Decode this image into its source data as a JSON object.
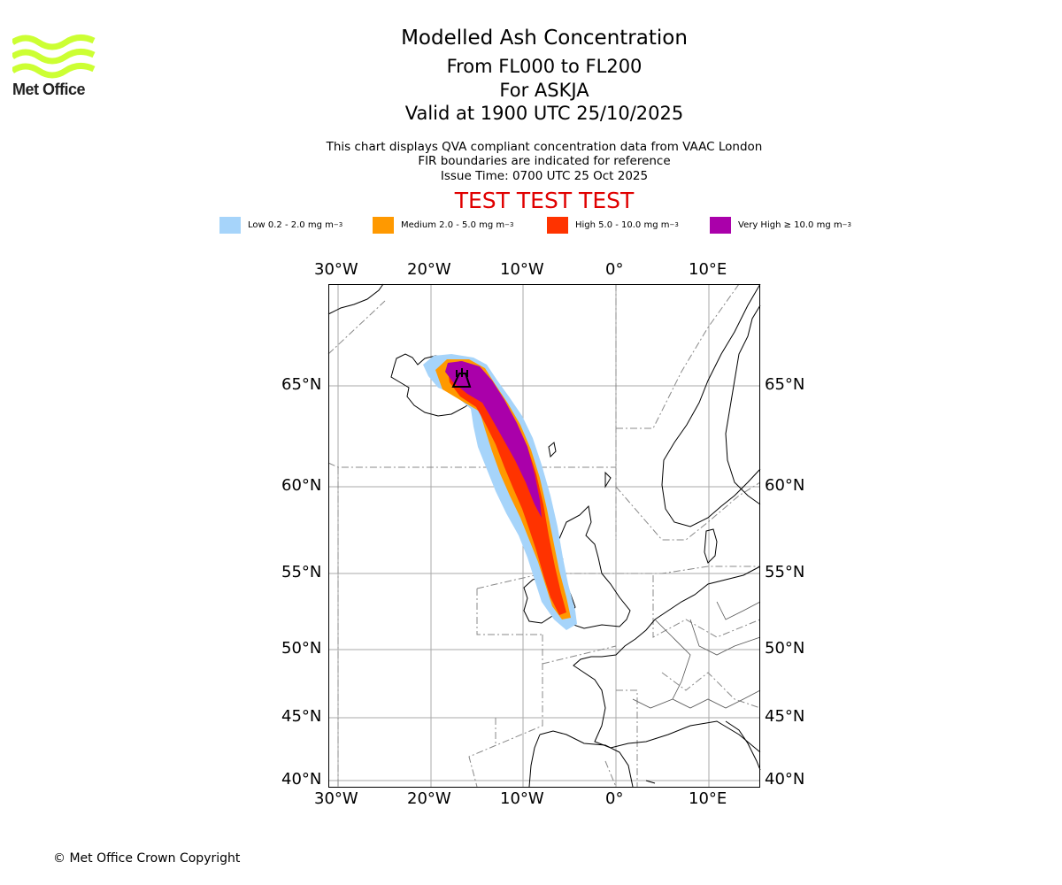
{
  "logo": {
    "brand": "Met Office",
    "color": "#ccff33"
  },
  "header": {
    "title": "Modelled Ash Concentration",
    "level": "From FL000 to FL200",
    "volcano": "For ASKJA",
    "valid": "Valid at 1900 UTC 25/10/2025",
    "note1": "This chart displays QVA compliant concentration data from VAAC London",
    "note2": "FIR boundaries are indicated for reference",
    "issue": "Issue Time: 0700 UTC 25 Oct 2025",
    "test_banner": "TEST TEST TEST"
  },
  "legend": [
    {
      "label": "Low 0.2 - 2.0 mg m",
      "unit_exp": "−3",
      "color": "#a6d4fa"
    },
    {
      "label": "Medium 2.0 - 5.0 mg m",
      "unit_exp": "−3",
      "color": "#ff9900"
    },
    {
      "label": "High 5.0 - 10.0 mg m",
      "unit_exp": "−3",
      "color": "#ff3300"
    },
    {
      "label": "Very High  ≥  10.0 mg m",
      "unit_exp": "−3",
      "color": "#aa00aa"
    }
  ],
  "map": {
    "lon_labels": [
      "30°W",
      "20°W",
      "10°W",
      "0°",
      "10°E"
    ],
    "lat_labels": [
      "65°N",
      "60°N",
      "55°N",
      "50°N",
      "45°N",
      "40°N"
    ],
    "lon_range": [
      -31,
      15
    ],
    "lat_range": [
      39.5,
      70
    ]
  },
  "footer": {
    "copyright": "© Met Office Crown Copyright"
  }
}
